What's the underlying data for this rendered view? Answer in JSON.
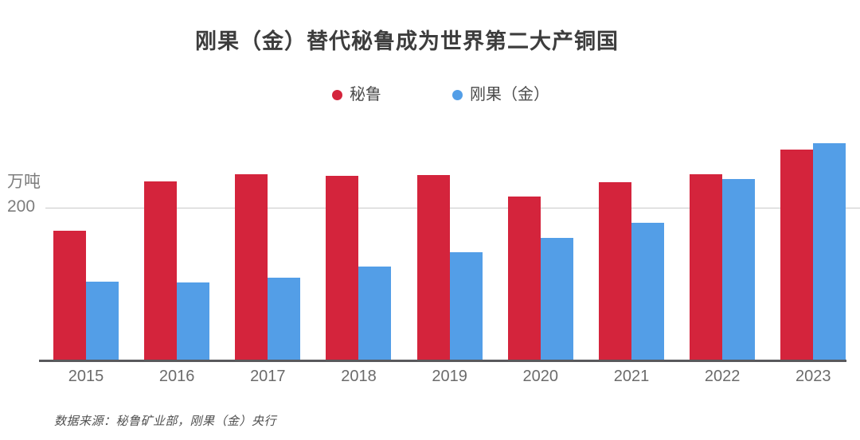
{
  "source_note": "数据来源：秘鲁矿业部，刚果（金）央行",
  "colors": {
    "peru_red": "#d4243c",
    "congo_blue": "#539ee7",
    "gridline": "#c9c9c9",
    "axis_line": "#59595c",
    "title_text": "#3d3d3d",
    "label_gray": "#7d7d7d"
  },
  "chart_data": {
    "type": "bar",
    "title": "刚果（金）替代秘鲁成为世界第二大产铜国",
    "ylabel": "万吨",
    "y_tick_label": "200",
    "y_tick_value": 200,
    "ylim": [
      0,
      290
    ],
    "grid": "single horizontal gridline at y=200",
    "legend_position": "top-center",
    "categories": [
      "2015",
      "2016",
      "2017",
      "2018",
      "2019",
      "2020",
      "2021",
      "2022",
      "2023"
    ],
    "series": [
      {
        "name": "秘鲁",
        "key": "peru",
        "color": "#d4243c",
        "values": [
          170,
          235,
          244,
          242,
          243,
          215,
          233,
          244,
          276
        ]
      },
      {
        "name": "刚果（金）",
        "key": "congo",
        "color": "#539ee7",
        "values": [
          103,
          102,
          108,
          122,
          141,
          160,
          180,
          238,
          285
        ]
      }
    ]
  }
}
